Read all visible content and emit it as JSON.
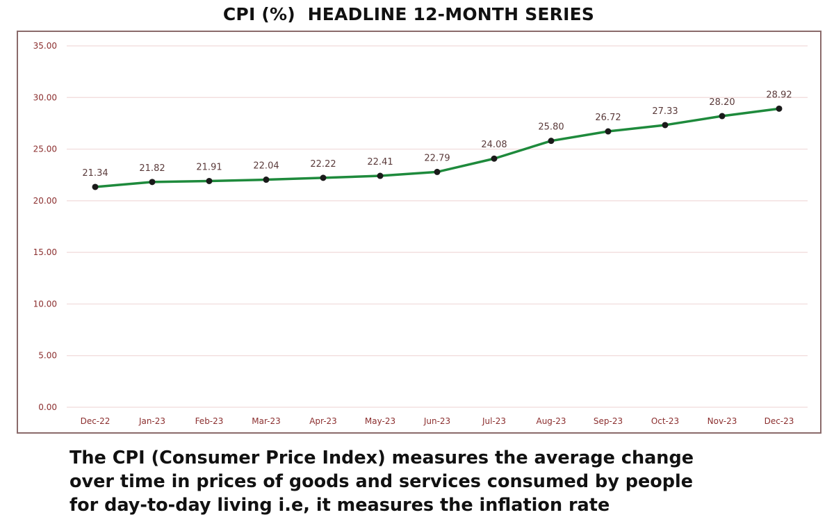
{
  "title": "CPI (%)  HEADLINE 12-MONTH SERIES",
  "caption": {
    "lines": [
      "The CPI (Consumer Price Index) measures the average change",
      "over time in prices of goods and services consumed by people",
      "for day-to-day living i.e, it measures the inflation rate"
    ]
  },
  "colors": {
    "line": "#1e8a3c",
    "marker": "#1a1a1a",
    "data_label": "#5a3a3a",
    "tick_label": "#8b2e2e",
    "grid": "#f0dada",
    "frame": "#8a6a6a"
  },
  "chart_data": {
    "type": "line",
    "title": "CPI (%)  HEADLINE 12-MONTH SERIES",
    "xlabel": "",
    "ylabel": "",
    "categories": [
      "Dec-22",
      "Jan-23",
      "Feb-23",
      "Mar-23",
      "Apr-23",
      "May-23",
      "Jun-23",
      "Jul-23",
      "Aug-23",
      "Sep-23",
      "Oct-23",
      "Nov-23",
      "Dec-23"
    ],
    "values": [
      21.34,
      21.82,
      21.91,
      22.04,
      22.22,
      22.41,
      22.79,
      24.08,
      25.8,
      26.72,
      27.33,
      28.2,
      28.92
    ],
    "data_labels": [
      "21.34",
      "21.82",
      "21.91",
      "22.04",
      "22.22",
      "22.41",
      "22.79",
      "24.08",
      "25.80",
      "26.72",
      "27.33",
      "28.20",
      "28.92"
    ],
    "y_ticks": [
      "0.00",
      "5.00",
      "10.00",
      "15.00",
      "20.00",
      "25.00",
      "30.00",
      "35.00"
    ],
    "ylim": [
      0,
      35
    ],
    "grid": true,
    "legend": "none"
  }
}
